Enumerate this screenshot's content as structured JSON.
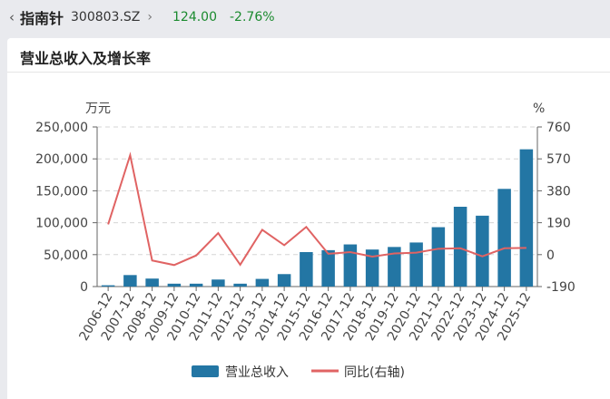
{
  "header": {
    "back_icon": "chevron-left-icon",
    "stock_name": "指南针",
    "stock_code": "300803.SZ",
    "forward_icon": "chevron-right-icon",
    "price": "124.00",
    "change": "-2.76%",
    "change_color": "#1a8a2e"
  },
  "card": {
    "title": "营业总收入及增长率"
  },
  "chart_data": {
    "type": "bar",
    "categories": [
      "2006-12",
      "2007-12",
      "2008-12",
      "2009-12",
      "2010-12",
      "2011-12",
      "2012-12",
      "2013-12",
      "2014-12",
      "2015-12",
      "2016-12",
      "2017-12",
      "2018-12",
      "2019-12",
      "2020-12",
      "2021-12",
      "2022-12",
      "2023-12",
      "2024-12",
      "2025-12"
    ],
    "series": [
      {
        "name": "营业总收入",
        "type": "bar",
        "axis": "left",
        "color": "#2376a4",
        "values": [
          2000,
          18000,
          12500,
          4500,
          4500,
          11000,
          4500,
          12000,
          19500,
          54000,
          57000,
          66000,
          58000,
          62000,
          69000,
          93000,
          125000,
          111000,
          153000,
          215000
        ]
      },
      {
        "name": "同比(右轴)",
        "type": "line",
        "axis": "right",
        "color": "#e06363",
        "values": [
          180,
          592,
          -35,
          -62,
          -5,
          128,
          -60,
          148,
          56,
          165,
          5,
          15,
          -12,
          7,
          12,
          35,
          38,
          -10,
          38,
          40
        ]
      }
    ],
    "left_axis": {
      "unit": "万元",
      "ticks": [
        "250,000",
        "200,000",
        "150,000",
        "100,000",
        "50,000",
        "0"
      ],
      "range": [
        0,
        250000
      ]
    },
    "right_axis": {
      "unit": "%",
      "ticks": [
        "760",
        "570",
        "380",
        "190",
        "0",
        "-190"
      ],
      "range": [
        -190,
        760
      ]
    },
    "grid": true,
    "legend_position": "bottom"
  }
}
